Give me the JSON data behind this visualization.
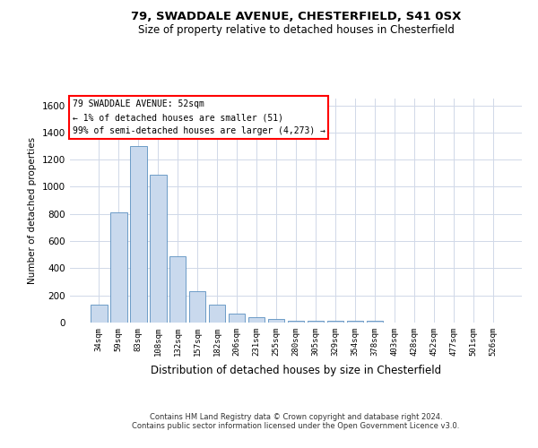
{
  "title_line1": "79, SWADDALE AVENUE, CHESTERFIELD, S41 0SX",
  "title_line2": "Size of property relative to detached houses in Chesterfield",
  "xlabel": "Distribution of detached houses by size in Chesterfield",
  "ylabel": "Number of detached properties",
  "bar_color": "#c9d9ed",
  "bar_edge_color": "#5a8fc0",
  "categories": [
    "34sqm",
    "59sqm",
    "83sqm",
    "108sqm",
    "132sqm",
    "157sqm",
    "182sqm",
    "206sqm",
    "231sqm",
    "255sqm",
    "280sqm",
    "305sqm",
    "329sqm",
    "354sqm",
    "378sqm",
    "403sqm",
    "428sqm",
    "452sqm",
    "477sqm",
    "501sqm",
    "526sqm"
  ],
  "values": [
    130,
    810,
    1300,
    1090,
    490,
    230,
    130,
    65,
    38,
    25,
    15,
    10,
    10,
    10,
    10,
    0,
    0,
    0,
    0,
    0,
    0
  ],
  "ylim": [
    0,
    1650
  ],
  "yticks": [
    0,
    200,
    400,
    600,
    800,
    1000,
    1200,
    1400,
    1600
  ],
  "annotation_box_text": "79 SWADDALE AVENUE: 52sqm\n← 1% of detached houses are smaller (51)\n99% of semi-detached houses are larger (4,273) →",
  "footer_line1": "Contains HM Land Registry data © Crown copyright and database right 2024.",
  "footer_line2": "Contains public sector information licensed under the Open Government Licence v3.0.",
  "background_color": "#ffffff",
  "grid_color": "#d0d8e8"
}
